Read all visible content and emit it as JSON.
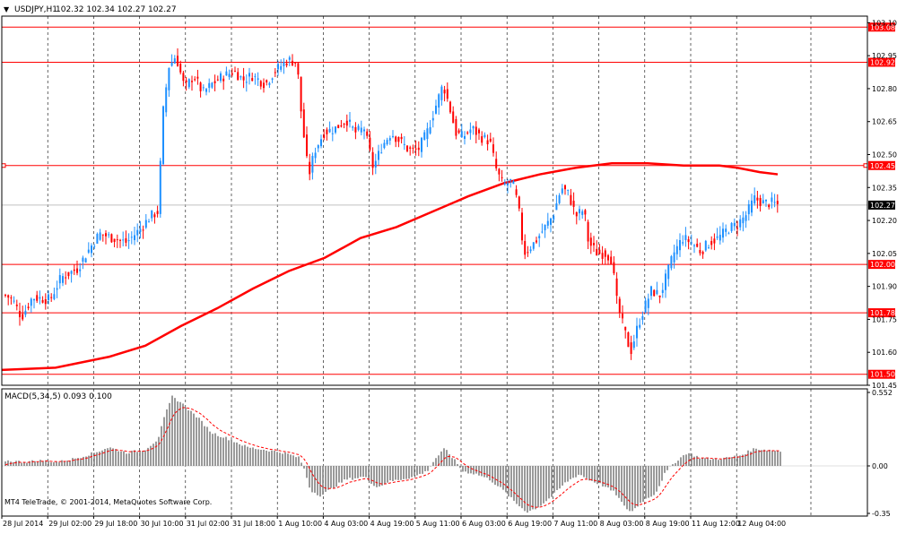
{
  "header": {
    "symbol_label": "USDJPY,H1",
    "ohlc_text": "102.32 102.34 102.27 102.27",
    "arrow_glyph": "▼"
  },
  "macd": {
    "label": "MACD(5,34,5) 0.093 0.100",
    "ticks": [
      "0.552",
      "0.00",
      "-0.35"
    ]
  },
  "copyright": "MT4 TeleTrade, © 2001-2014, MetaQuotes Software Corp.",
  "colors": {
    "background": "#ffffff",
    "grid": "#000000",
    "bull": "#1e90ff",
    "bear": "#ff0000",
    "hline": "#ff0000",
    "ma": "#ff0000",
    "hist": "#808080",
    "signal": "#ff0000",
    "bid_line": "#c0c0c0"
  },
  "chart_data": {
    "type": "candlestick",
    "timeframe": "H1",
    "ylim": [
      101.45,
      103.13
    ],
    "price_ticks": [
      "103.10",
      "102.95",
      "102.80",
      "102.65",
      "102.50",
      "102.35",
      "102.20",
      "102.05",
      "101.90",
      "101.75",
      "101.60",
      "101.45"
    ],
    "time_labels": [
      "28 Jul 2014",
      "29 Jul 02:00",
      "29 Jul 18:00",
      "30 Jul 10:00",
      "31 Jul 02:00",
      "31 Jul 18:00",
      "1 Aug 10:00",
      "4 Aug 03:00",
      "4 Aug 19:00",
      "5 Aug 11:00",
      "6 Aug 03:00",
      "6 Aug 19:00",
      "7 Aug 11:00",
      "8 Aug 03:00",
      "8 Aug 19:00",
      "11 Aug 12:00",
      "12 Aug 04:00"
    ],
    "price_levels": [
      {
        "value": 103.08,
        "label": "103.08"
      },
      {
        "value": 102.92,
        "label": "102.92"
      },
      {
        "value": 102.45,
        "label": "102.45"
      },
      {
        "value": 102.0,
        "label": "102.00"
      },
      {
        "value": 101.78,
        "label": "101.78"
      },
      {
        "value": 101.5,
        "label": "101.50"
      }
    ],
    "current_price": {
      "value": 102.27,
      "label": "102.27"
    },
    "price_path": [
      [
        0,
        101.86
      ],
      [
        8,
        101.84
      ],
      [
        18,
        101.76
      ],
      [
        30,
        101.85
      ],
      [
        50,
        101.84
      ],
      [
        62,
        101.94
      ],
      [
        80,
        101.98
      ],
      [
        95,
        102.08
      ],
      [
        105,
        102.14
      ],
      [
        120,
        102.12
      ],
      [
        135,
        102.1
      ],
      [
        150,
        102.16
      ],
      [
        162,
        102.22
      ],
      [
        170,
        102.24
      ],
      [
        176,
        102.7
      ],
      [
        182,
        102.9
      ],
      [
        190,
        102.95
      ],
      [
        200,
        102.8
      ],
      [
        210,
        102.86
      ],
      [
        220,
        102.78
      ],
      [
        230,
        102.82
      ],
      [
        240,
        102.85
      ],
      [
        255,
        102.88
      ],
      [
        265,
        102.84
      ],
      [
        275,
        102.86
      ],
      [
        290,
        102.82
      ],
      [
        300,
        102.88
      ],
      [
        315,
        102.93
      ],
      [
        325,
        102.92
      ],
      [
        330,
        102.68
      ],
      [
        338,
        102.4
      ],
      [
        345,
        102.52
      ],
      [
        355,
        102.6
      ],
      [
        368,
        102.62
      ],
      [
        380,
        102.66
      ],
      [
        390,
        102.6
      ],
      [
        400,
        102.62
      ],
      [
        410,
        102.44
      ],
      [
        420,
        102.54
      ],
      [
        430,
        102.6
      ],
      [
        440,
        102.56
      ],
      [
        450,
        102.52
      ],
      [
        460,
        102.52
      ],
      [
        470,
        102.6
      ],
      [
        478,
        102.7
      ],
      [
        488,
        102.82
      ],
      [
        495,
        102.72
      ],
      [
        502,
        102.6
      ],
      [
        510,
        102.58
      ],
      [
        520,
        102.62
      ],
      [
        530,
        102.58
      ],
      [
        540,
        102.56
      ],
      [
        548,
        102.42
      ],
      [
        555,
        102.36
      ],
      [
        565,
        102.38
      ],
      [
        572,
        102.26
      ],
      [
        578,
        102.05
      ],
      [
        590,
        102.1
      ],
      [
        600,
        102.16
      ],
      [
        610,
        102.22
      ],
      [
        620,
        102.35
      ],
      [
        628,
        102.32
      ],
      [
        636,
        102.22
      ],
      [
        645,
        102.25
      ],
      [
        650,
        102.1
      ],
      [
        660,
        102.05
      ],
      [
        670,
        102.05
      ],
      [
        676,
        102.02
      ],
      [
        682,
        101.82
      ],
      [
        690,
        101.7
      ],
      [
        697,
        101.6
      ],
      [
        705,
        101.72
      ],
      [
        712,
        101.8
      ],
      [
        720,
        101.88
      ],
      [
        730,
        101.86
      ],
      [
        738,
        101.96
      ],
      [
        745,
        102.05
      ],
      [
        755,
        102.12
      ],
      [
        765,
        102.1
      ],
      [
        775,
        102.06
      ],
      [
        785,
        102.1
      ],
      [
        795,
        102.12
      ],
      [
        805,
        102.16
      ],
      [
        815,
        102.18
      ],
      [
        825,
        102.22
      ],
      [
        835,
        102.3
      ],
      [
        845,
        102.28
      ],
      [
        855,
        102.28
      ],
      [
        862,
        102.27
      ]
    ],
    "moving_average": [
      [
        0,
        101.52
      ],
      [
        60,
        101.53
      ],
      [
        120,
        101.58
      ],
      [
        160,
        101.63
      ],
      [
        200,
        101.72
      ],
      [
        240,
        101.8
      ],
      [
        280,
        101.89
      ],
      [
        320,
        101.97
      ],
      [
        360,
        102.03
      ],
      [
        400,
        102.12
      ],
      [
        440,
        102.17
      ],
      [
        480,
        102.24
      ],
      [
        520,
        102.31
      ],
      [
        560,
        102.37
      ],
      [
        600,
        102.41
      ],
      [
        640,
        102.44
      ],
      [
        680,
        102.46
      ],
      [
        720,
        102.46
      ],
      [
        760,
        102.45
      ],
      [
        800,
        102.45
      ],
      [
        820,
        102.44
      ],
      [
        845,
        102.42
      ],
      [
        865,
        102.41
      ]
    ],
    "macd_histogram": [
      [
        0,
        0.04
      ],
      [
        20,
        0.03
      ],
      [
        40,
        0.04
      ],
      [
        60,
        0.03
      ],
      [
        80,
        0.06
      ],
      [
        100,
        0.1
      ],
      [
        115,
        0.14
      ],
      [
        135,
        0.1
      ],
      [
        155,
        0.12
      ],
      [
        170,
        0.2
      ],
      [
        178,
        0.38
      ],
      [
        186,
        0.52
      ],
      [
        195,
        0.48
      ],
      [
        205,
        0.42
      ],
      [
        215,
        0.36
      ],
      [
        230,
        0.25
      ],
      [
        250,
        0.2
      ],
      [
        270,
        0.14
      ],
      [
        290,
        0.12
      ],
      [
        310,
        0.1
      ],
      [
        328,
        0.06
      ],
      [
        334,
        -0.04
      ],
      [
        340,
        -0.18
      ],
      [
        352,
        -0.22
      ],
      [
        365,
        -0.16
      ],
      [
        380,
        -0.1
      ],
      [
        400,
        -0.08
      ],
      [
        415,
        -0.16
      ],
      [
        425,
        -0.12
      ],
      [
        440,
        -0.1
      ],
      [
        455,
        -0.08
      ],
      [
        470,
        -0.04
      ],
      [
        480,
        0.06
      ],
      [
        490,
        0.13
      ],
      [
        500,
        0.05
      ],
      [
        510,
        -0.04
      ],
      [
        525,
        -0.06
      ],
      [
        540,
        -0.1
      ],
      [
        555,
        -0.18
      ],
      [
        570,
        -0.28
      ],
      [
        582,
        -0.34
      ],
      [
        595,
        -0.3
      ],
      [
        610,
        -0.22
      ],
      [
        625,
        -0.12
      ],
      [
        640,
        -0.06
      ],
      [
        650,
        -0.1
      ],
      [
        665,
        -0.14
      ],
      [
        680,
        -0.2
      ],
      [
        690,
        -0.3
      ],
      [
        698,
        -0.34
      ],
      [
        710,
        -0.26
      ],
      [
        725,
        -0.2
      ],
      [
        735,
        -0.06
      ],
      [
        745,
        0.02
      ],
      [
        760,
        0.1
      ],
      [
        775,
        0.06
      ],
      [
        790,
        0.05
      ],
      [
        805,
        0.06
      ],
      [
        820,
        0.08
      ],
      [
        835,
        0.13
      ],
      [
        850,
        0.12
      ],
      [
        865,
        0.11
      ]
    ]
  }
}
